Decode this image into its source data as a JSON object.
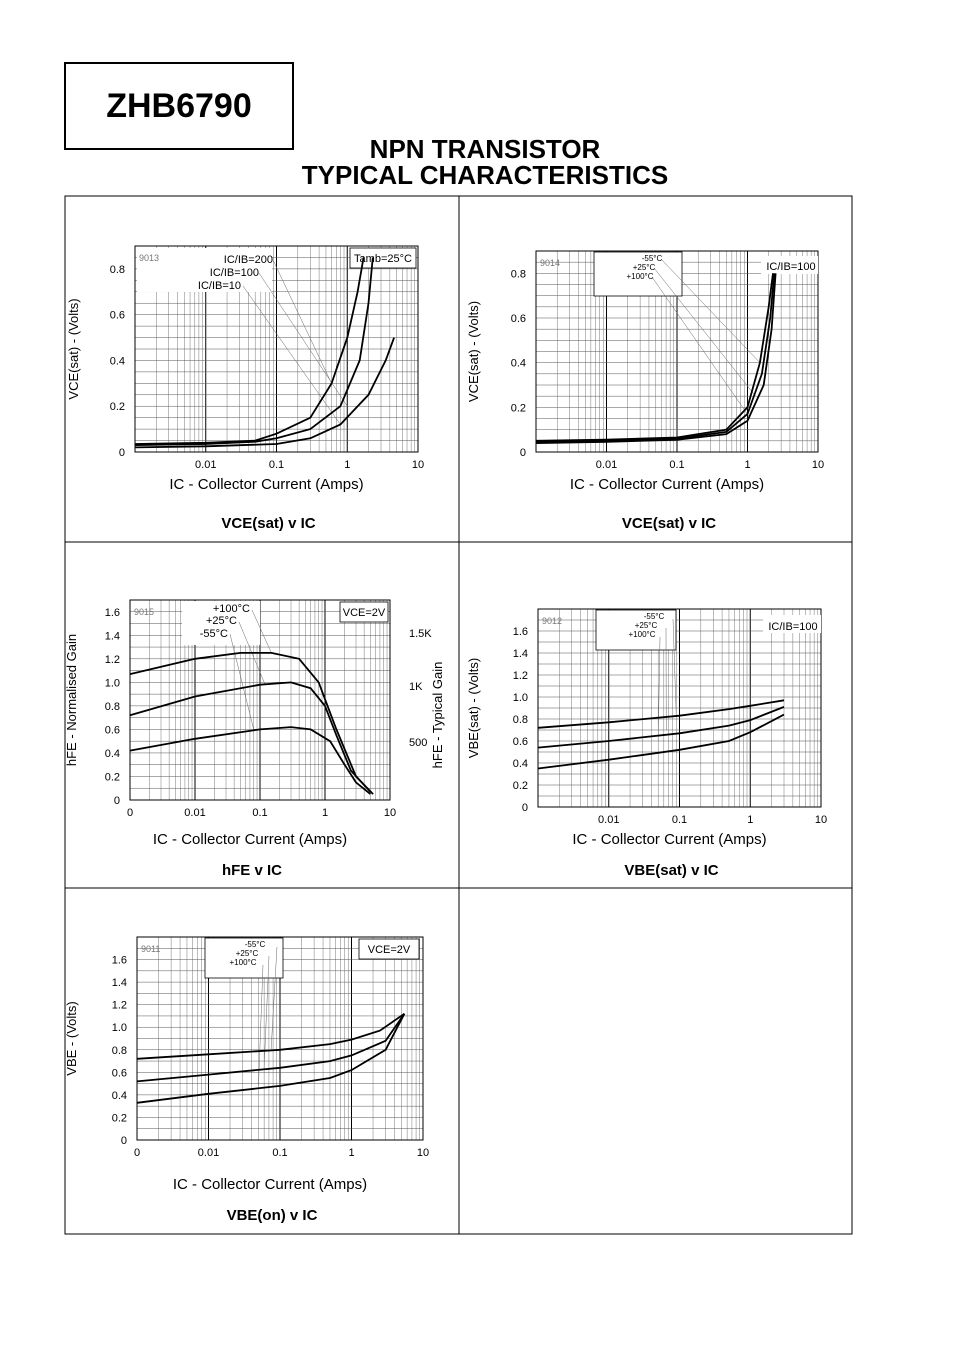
{
  "header": {
    "part_number": "ZHB6790",
    "title_line1": "NPN TRANSISTOR",
    "title_line2": "TYPICAL CHARACTERISTICS"
  },
  "chart_data": [
    {
      "id": "chart1",
      "type": "line",
      "x_scale": "log",
      "xlim": [
        0.001,
        10
      ],
      "ylim": [
        0,
        0.9
      ],
      "x_ticks": [
        "0.01",
        "0.1",
        "1",
        "10"
      ],
      "y_ticks": [
        "0",
        "0.2",
        "0.4",
        "0.6",
        "0.8"
      ],
      "ylabel": "VCE(sat) - (Volts)",
      "xlabel": "IC - Collector Current (Amps)",
      "caption": "VCE(sat) v IC",
      "code": "9013",
      "condition": "Tamb=25°C",
      "annotations": [
        "IC/IB=200",
        "IC/IB=100",
        "IC/IB=10"
      ],
      "series": [
        {
          "points": [
            [
              0.001,
              0.035
            ],
            [
              0.01,
              0.04
            ],
            [
              0.05,
              0.05
            ],
            [
              0.1,
              0.08
            ],
            [
              0.3,
              0.15
            ],
            [
              0.6,
              0.3
            ],
            [
              1.0,
              0.5
            ],
            [
              1.4,
              0.7
            ],
            [
              1.7,
              0.85
            ]
          ]
        },
        {
          "points": [
            [
              0.001,
              0.03
            ],
            [
              0.01,
              0.035
            ],
            [
              0.05,
              0.045
            ],
            [
              0.1,
              0.06
            ],
            [
              0.3,
              0.1
            ],
            [
              0.8,
              0.2
            ],
            [
              1.5,
              0.4
            ],
            [
              2.0,
              0.65
            ],
            [
              2.3,
              0.85
            ]
          ]
        },
        {
          "points": [
            [
              0.001,
              0.02
            ],
            [
              0.01,
              0.025
            ],
            [
              0.1,
              0.035
            ],
            [
              0.3,
              0.06
            ],
            [
              0.8,
              0.12
            ],
            [
              2.0,
              0.25
            ],
            [
              3.5,
              0.4
            ],
            [
              4.6,
              0.5
            ]
          ]
        }
      ]
    },
    {
      "id": "chart2",
      "type": "line",
      "x_scale": "log",
      "xlim": [
        0.001,
        10
      ],
      "ylim": [
        0,
        0.9
      ],
      "x_ticks": [
        "0.01",
        "0.1",
        "1",
        "10"
      ],
      "y_ticks": [
        "0",
        "0.2",
        "0.4",
        "0.6",
        "0.8"
      ],
      "ylabel": "VCE(sat) - (Volts)",
      "xlabel": "IC - Collector Current (Amps)",
      "caption": "VCE(sat) v IC",
      "code": "9014",
      "condition": "IC/IB=100",
      "annotations": [
        "-55°C",
        "+25°C",
        "+100°C"
      ],
      "series": [
        {
          "name": "-55°C",
          "points": [
            [
              0.001,
              0.05
            ],
            [
              0.01,
              0.055
            ],
            [
              0.1,
              0.065
            ],
            [
              0.5,
              0.1
            ],
            [
              1.0,
              0.2
            ],
            [
              1.5,
              0.4
            ],
            [
              2.0,
              0.65
            ],
            [
              2.3,
              0.8
            ]
          ]
        },
        {
          "name": "+25°C",
          "points": [
            [
              0.001,
              0.045
            ],
            [
              0.01,
              0.05
            ],
            [
              0.1,
              0.06
            ],
            [
              0.5,
              0.09
            ],
            [
              1.0,
              0.17
            ],
            [
              1.6,
              0.35
            ],
            [
              2.1,
              0.6
            ],
            [
              2.4,
              0.8
            ]
          ]
        },
        {
          "name": "+100°C",
          "points": [
            [
              0.001,
              0.04
            ],
            [
              0.01,
              0.045
            ],
            [
              0.1,
              0.055
            ],
            [
              0.5,
              0.08
            ],
            [
              1.0,
              0.14
            ],
            [
              1.7,
              0.3
            ],
            [
              2.2,
              0.55
            ],
            [
              2.5,
              0.8
            ]
          ]
        }
      ]
    },
    {
      "id": "chart3",
      "type": "line",
      "x_scale": "log",
      "xlim": [
        0.001,
        10
      ],
      "ylim": [
        0,
        1.7
      ],
      "x_ticks": [
        "0",
        "0.01",
        "0.1",
        "1",
        "10"
      ],
      "y_ticks": [
        "0",
        "0.2",
        "0.4",
        "0.6",
        "0.8",
        "1.0",
        "1.2",
        "1.4",
        "1.6"
      ],
      "y2_ticks": [
        "1.5K",
        "1K",
        "500"
      ],
      "ylabel": "hFE - Normalised Gain",
      "y2label": "hFE - Typical Gain",
      "xlabel": "IC - Collector Current (Amps)",
      "caption": "hFE v IC",
      "code": "9015",
      "condition": "VCE=2V",
      "annotations": [
        "+100°C",
        "+25°C",
        "-55°C"
      ],
      "series": [
        {
          "name": "+100°C",
          "points": [
            [
              0.001,
              1.07
            ],
            [
              0.01,
              1.2
            ],
            [
              0.05,
              1.25
            ],
            [
              0.15,
              1.25
            ],
            [
              0.4,
              1.2
            ],
            [
              0.8,
              1.0
            ],
            [
              1.5,
              0.6
            ],
            [
              3.0,
              0.2
            ],
            [
              5.5,
              0.05
            ]
          ]
        },
        {
          "name": "+25°C",
          "points": [
            [
              0.001,
              0.72
            ],
            [
              0.01,
              0.88
            ],
            [
              0.1,
              0.98
            ],
            [
              0.3,
              1.0
            ],
            [
              0.6,
              0.95
            ],
            [
              1.0,
              0.8
            ],
            [
              1.5,
              0.55
            ],
            [
              2.5,
              0.25
            ],
            [
              5.0,
              0.07
            ]
          ]
        },
        {
          "name": "-55°C",
          "points": [
            [
              0.001,
              0.42
            ],
            [
              0.01,
              0.52
            ],
            [
              0.1,
              0.6
            ],
            [
              0.3,
              0.62
            ],
            [
              0.6,
              0.6
            ],
            [
              1.2,
              0.5
            ],
            [
              2.0,
              0.3
            ],
            [
              3.0,
              0.15
            ],
            [
              5.0,
              0.05
            ]
          ]
        }
      ]
    },
    {
      "id": "chart4",
      "type": "line",
      "x_scale": "log",
      "xlim": [
        0.001,
        10
      ],
      "ylim": [
        0,
        1.8
      ],
      "x_ticks": [
        "0.01",
        "0.1",
        "1",
        "10"
      ],
      "y_ticks": [
        "0",
        "0.2",
        "0.4",
        "0.6",
        "0.8",
        "1.0",
        "1.2",
        "1.4",
        "1.6"
      ],
      "ylabel": "VBE(sat) - (Volts)",
      "xlabel": "IC - Collector Current (Amps)",
      "caption": "VBE(sat) v IC",
      "code": "9012",
      "condition": "IC/IB=100",
      "annotations": [
        "-55°C",
        "+25°C",
        "+100°C"
      ],
      "series": [
        {
          "name": "-55°C",
          "points": [
            [
              0.001,
              0.72
            ],
            [
              0.01,
              0.77
            ],
            [
              0.1,
              0.83
            ],
            [
              0.5,
              0.89
            ],
            [
              1.0,
              0.92
            ],
            [
              3.0,
              0.97
            ]
          ]
        },
        {
          "name": "+25°C",
          "points": [
            [
              0.001,
              0.54
            ],
            [
              0.01,
              0.6
            ],
            [
              0.1,
              0.67
            ],
            [
              0.5,
              0.74
            ],
            [
              1.0,
              0.79
            ],
            [
              3.0,
              0.91
            ]
          ]
        },
        {
          "name": "+100°C",
          "points": [
            [
              0.001,
              0.35
            ],
            [
              0.01,
              0.43
            ],
            [
              0.1,
              0.52
            ],
            [
              0.5,
              0.6
            ],
            [
              1.0,
              0.68
            ],
            [
              3.0,
              0.84
            ]
          ]
        }
      ]
    },
    {
      "id": "chart5",
      "type": "line",
      "x_scale": "log",
      "xlim": [
        0.001,
        10
      ],
      "ylim": [
        0,
        1.8
      ],
      "x_ticks": [
        "0",
        "0.01",
        "0.1",
        "1",
        "10"
      ],
      "y_ticks": [
        "0",
        "0.2",
        "0.4",
        "0.6",
        "0.8",
        "1.0",
        "1.2",
        "1.4",
        "1.6"
      ],
      "ylabel": "VBE - (Volts)",
      "xlabel": "IC - Collector Current (Amps)",
      "caption": "VBE(on) v IC",
      "code": "9011",
      "condition": "VCE=2V",
      "annotations": [
        "-55°C",
        "+25°C",
        "+100°C"
      ],
      "series": [
        {
          "name": "-55°C",
          "points": [
            [
              0.001,
              0.72
            ],
            [
              0.01,
              0.76
            ],
            [
              0.1,
              0.8
            ],
            [
              0.5,
              0.85
            ],
            [
              1.0,
              0.89
            ],
            [
              2.5,
              0.97
            ],
            [
              5.5,
              1.12
            ]
          ]
        },
        {
          "name": "+25°C",
          "points": [
            [
              0.001,
              0.52
            ],
            [
              0.01,
              0.58
            ],
            [
              0.1,
              0.64
            ],
            [
              0.5,
              0.7
            ],
            [
              1.0,
              0.75
            ],
            [
              3.0,
              0.88
            ],
            [
              5.5,
              1.12
            ]
          ]
        },
        {
          "name": "+100°C",
          "points": [
            [
              0.001,
              0.33
            ],
            [
              0.01,
              0.41
            ],
            [
              0.1,
              0.48
            ],
            [
              0.5,
              0.55
            ],
            [
              1.0,
              0.62
            ],
            [
              3.0,
              0.8
            ],
            [
              5.5,
              1.12
            ]
          ]
        }
      ]
    }
  ]
}
